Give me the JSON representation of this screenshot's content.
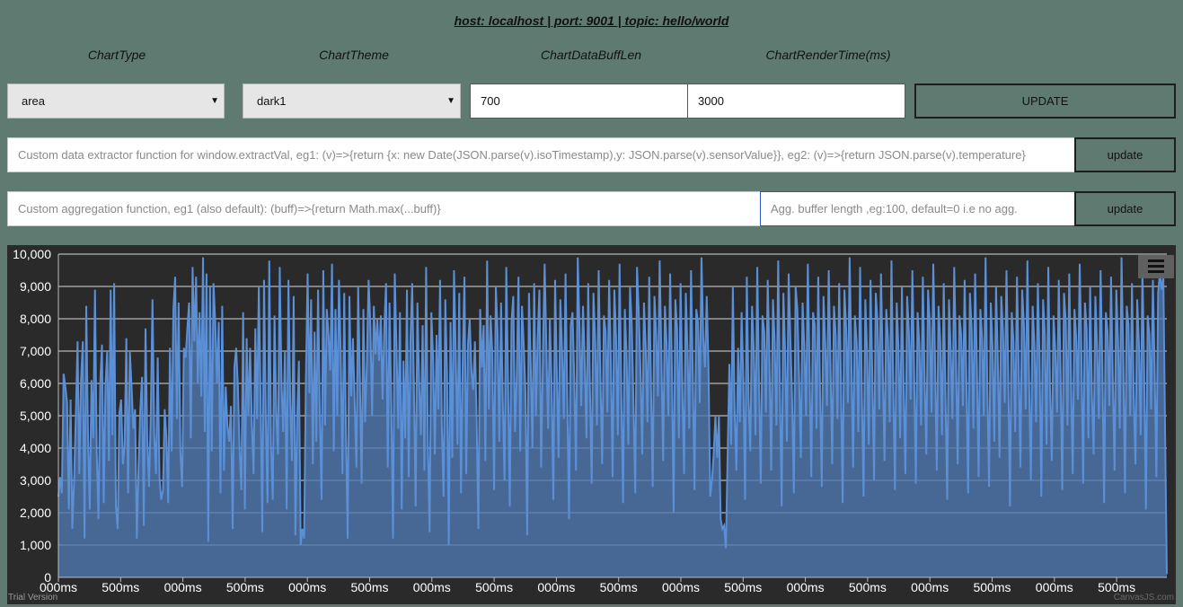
{
  "header": {
    "text": "host: localhost | port: 9001 | topic: hello/world"
  },
  "labels": {
    "chart_type": "ChartType",
    "chart_theme": "ChartTheme",
    "buff_len": "ChartDataBuffLen",
    "render_time": "ChartRenderTime(ms)"
  },
  "controls": {
    "chart_type_value": "area",
    "chart_theme_value": "dark1",
    "buff_len_value": "700",
    "render_time_value": "3000",
    "update_label": "UPDATE"
  },
  "extractor": {
    "placeholder": "Custom data extractor function for window.extractVal, eg1: (v)=>{return {x: new Date(JSON.parse(v).isoTimestamp),y: JSON.parse(v).sensorValue}}, eg2: (v)=>{return JSON.parse(v).temperature}",
    "button": "update"
  },
  "aggregation": {
    "placeholder": "Custom aggregation function, eg1 (also default): (buff)=>{return Math.max(...buff)}",
    "buffer_placeholder": "Agg. buffer length ,eg:100, default=0 i.e no agg.",
    "button": "update"
  },
  "chart": {
    "trial_text": "Trial Version",
    "credit_text": "CanvasJS.com",
    "menu_icon": "hamburger-menu-icon"
  },
  "chart_data": {
    "type": "area",
    "theme": "dark1",
    "fill_color": "#4f78b0",
    "line_color": "#5b8fd6",
    "ylim": [
      0,
      10000
    ],
    "y_ticks": [
      "0",
      "1,000",
      "2,000",
      "3,000",
      "4,000",
      "5,000",
      "6,000",
      "7,000",
      "8,000",
      "9,000",
      "10,000"
    ],
    "x_ticks": [
      "000ms",
      "500ms",
      "000ms",
      "500ms",
      "000ms",
      "500ms",
      "000ms",
      "500ms",
      "000ms",
      "500ms",
      "000ms",
      "500ms",
      "000ms",
      "500ms",
      "000ms",
      "500ms",
      "000ms",
      "500ms"
    ],
    "grid": true,
    "values": [
      2500,
      3100,
      2600,
      6300,
      5900,
      5400,
      2100,
      5500,
      1500,
      3000,
      5000,
      7300,
      3200,
      6100,
      7300,
      1200,
      8400,
      4400,
      2100,
      6100,
      4300,
      8900,
      3900,
      1800,
      6000,
      7200,
      2300,
      5900,
      7000,
      3600,
      8900,
      4400,
      9100,
      2200,
      1500,
      5100,
      5500,
      3500,
      4100,
      7400,
      2600,
      7000,
      5900,
      4600,
      5200,
      1200,
      3400,
      5200,
      6200,
      1600,
      7700,
      4300,
      2800,
      5000,
      8600,
      4400,
      3200,
      6800,
      3100,
      2400,
      2700,
      5200,
      4300,
      2300,
      7100,
      3900,
      8300,
      9300,
      4900,
      8500,
      3900,
      2800,
      7100,
      6800,
      7700,
      8500,
      4300,
      9600,
      7300,
      9300,
      6000,
      8200,
      5600,
      9900,
      4500,
      9400,
      1100,
      9000,
      3900,
      9100,
      7900,
      6000,
      7900,
      2600,
      8400,
      3300,
      5900,
      4700,
      4200,
      5300,
      1500,
      6500,
      7100,
      5900,
      3900,
      2700,
      8200,
      2100,
      7400,
      5000,
      7100,
      4800,
      3200,
      7700,
      4900,
      9000,
      5600,
      1400,
      9200,
      5000,
      2300,
      9800,
      4100,
      2400,
      8100,
      5100,
      3800,
      9600,
      6100,
      4500,
      7000,
      2100,
      9200,
      5500,
      3600,
      8700,
      1300,
      4900,
      6700,
      1000,
      1500,
      1200,
      6100,
      9400,
      5700,
      8600,
      3500,
      7600,
      4200,
      8900,
      5100,
      2400,
      9500,
      4700,
      8300,
      7500,
      6400,
      9700,
      3900,
      8300,
      5000,
      9200,
      6900,
      3200,
      8800,
      4400,
      1200,
      8700,
      5600,
      7400,
      5400,
      3400,
      9000,
      6100,
      2900,
      8300,
      4800,
      6600,
      9200,
      7800,
      5000,
      8400,
      6900,
      8000,
      6700,
      8100,
      5500,
      7700,
      9100,
      3400,
      8500,
      5400,
      1200,
      9400,
      7100,
      4600,
      8200,
      2100,
      6700,
      4300,
      8900,
      3100,
      7300,
      9100,
      5900,
      2200,
      8500,
      6000,
      4400,
      7800,
      3300,
      9600,
      4200,
      1400,
      8200,
      6800,
      3800,
      7500,
      5200,
      9200,
      4700,
      2500,
      8600,
      6300,
      1000,
      7900,
      3700,
      9500,
      6900,
      4100,
      8800,
      2600,
      6700,
      9300,
      3200,
      7200,
      8000,
      6400,
      5800,
      7300,
      4800,
      1500,
      8300,
      6500,
      7800,
      3600,
      9800,
      5200,
      8100,
      6900,
      2700,
      9000,
      7600,
      4200,
      8500,
      5400,
      3000,
      9600,
      6100,
      2200,
      7900,
      8700,
      4500,
      6200,
      9300,
      3900,
      8400,
      7200,
      5700,
      1300,
      8800,
      6600,
      4000,
      9100,
      5000,
      7400,
      8900,
      3400,
      6800,
      9700,
      7100,
      4600,
      8000,
      5900,
      2400,
      9200,
      6300,
      3700,
      8600,
      7000,
      4900,
      9400,
      5500,
      1800,
      7800,
      8200,
      6100,
      3300,
      9900,
      7700,
      5300,
      8400,
      6700,
      4300,
      9100,
      5800,
      2900,
      8800,
      7300,
      4700,
      9500,
      6200,
      3500,
      8100,
      7600,
      5100,
      9200,
      6600,
      3100,
      8900,
      7400,
      4400,
      9700,
      5700,
      2300,
      8300,
      6900,
      4100,
      9000,
      7800,
      5300,
      2600,
      9600,
      8200,
      6400,
      3800,
      8500,
      7100,
      4800,
      9300,
      6000,
      2800,
      8700,
      7500,
      5600,
      9800,
      6800,
      3600,
      8400,
      7200,
      5000,
      9400,
      6500,
      2000,
      8600,
      7700,
      4300,
      9100,
      5900,
      3200,
      8800,
      7000,
      4600,
      9500,
      6300,
      2700,
      8300,
      7900,
      5400,
      9900,
      7400,
      6500,
      8700,
      6600,
      2500,
      3000,
      3800,
      5000,
      3700,
      5000,
      1800,
      1500,
      1600,
      900,
      3800,
      6600,
      4100,
      9000,
      5200,
      3300,
      7100,
      4800,
      8200,
      6100,
      2400,
      9300,
      5500,
      3900,
      8400,
      7000,
      4400,
      9600,
      6000,
      2900,
      8100,
      7600,
      5100,
      9200,
      6700,
      3300,
      8600,
      7300,
      4700,
      9800,
      5800,
      2200,
      8800,
      6900,
      4200,
      9400,
      7400,
      5500,
      2600,
      9000,
      8300,
      6200,
      3700,
      8500,
      7100,
      5000,
      9700,
      6400,
      3100,
      8200,
      7800,
      4600,
      9300,
      5900,
      2800,
      8700,
      7200,
      5300,
      9500,
      6600,
      3500,
      8400,
      7500,
      4900,
      9100,
      6100,
      2300,
      8900,
      7700,
      5400,
      9900,
      6800,
      3400,
      8100,
      7300,
      4500,
      9600,
      5700,
      2500,
      8600,
      7000,
      4100,
      9200,
      6300,
      3000,
      8800,
      7900,
      5200,
      9400,
      6500,
      3600,
      8300,
      7400,
      4800,
      9800,
      6000,
      2700,
      8500,
      7100,
      4300,
      9000,
      5800,
      3200,
      8700,
      7600,
      5500,
      9500,
      6400,
      2900,
      8200,
      7200,
      4700,
      9300,
      6200,
      3800,
      8900,
      7800,
      5100,
      9700,
      6700,
      3300,
      8400,
      7300,
      4400,
      9100,
      5600,
      2400,
      8600,
      7000,
      4900,
      9600,
      6900,
      3500,
      8100,
      7500,
      5300,
      9200,
      6100,
      2600,
      8800,
      7700,
      4600,
      9400,
      6600,
      3100,
      8300,
      7400,
      5000,
      9900,
      5900,
      2800,
      8500,
      7100,
      4200,
      9000,
      6800,
      3700,
      8700,
      7600,
      5400,
      9500,
      6300,
      2200,
      8200,
      7300,
      4500,
      9300,
      6500,
      3400,
      8900,
      7800,
      5200,
      9800,
      6000,
      3000,
      8400,
      7200,
      4800,
      9100,
      6700,
      2500,
      8600,
      7500,
      4100,
      9600,
      5800,
      3600,
      8100,
      7000,
      5100,
      9200,
      6400,
      2700,
      8800,
      7900,
      4700,
      9400,
      6200,
      3200,
      8300,
      7400,
      5500,
      9700,
      6900,
      2900,
      8500,
      7700,
      4300,
      9000,
      5700,
      3800,
      8700,
      7100,
      4900,
      9500,
      6600,
      2300,
      8200,
      7600,
      5300,
      9300,
      6100,
      3300,
      8900,
      7300,
      4600,
      9900,
      6800,
      2600,
      8400,
      7800,
      5000,
      9100,
      5600,
      3500,
      8600,
      7200,
      4400,
      9600,
      6300,
      2100,
      8100,
      7500,
      5200,
      9200,
      6500,
      3100,
      8800,
      9400,
      8900,
      9300,
      4500,
      100
    ]
  }
}
